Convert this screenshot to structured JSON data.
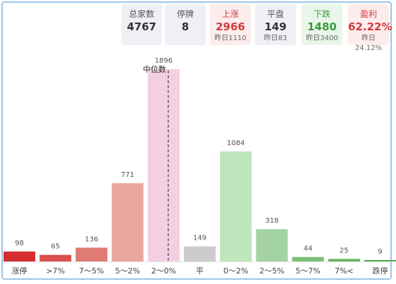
{
  "stats": {
    "total": {
      "label": "总家数",
      "value": "4767"
    },
    "halted": {
      "label": "停牌",
      "value": "8"
    },
    "up": {
      "label": "上涨",
      "value": "2966",
      "yesterday": "昨日1110"
    },
    "flat": {
      "label": "平盘",
      "value": "149",
      "yesterday": "昨日83"
    },
    "down": {
      "label": "下跌",
      "value": "1480",
      "yesterday": "昨日3400"
    },
    "profit": {
      "label": "盈利",
      "value": "62.22%",
      "yesterday": "昨日24.12%"
    }
  },
  "chart_data": {
    "type": "bar",
    "categories": [
      "涨停",
      ">7%",
      "7～5%",
      "5～2%",
      "2～0%",
      "平",
      "0～2%",
      "2～5%",
      "5～7%",
      "7%<",
      "跌停"
    ],
    "values": [
      98,
      65,
      136,
      771,
      1896,
      149,
      1084,
      318,
      44,
      25,
      9
    ],
    "colors": [
      "#d42d2d",
      "#d9504c",
      "#e07a74",
      "#e9a89f",
      "#f2cfe3",
      "#cccccc",
      "#bfe6bd",
      "#a3d3a2",
      "#7cbf78",
      "#65b461",
      "#4fa64c"
    ],
    "median_label": "中位数",
    "ylim": [
      0,
      1896
    ]
  }
}
